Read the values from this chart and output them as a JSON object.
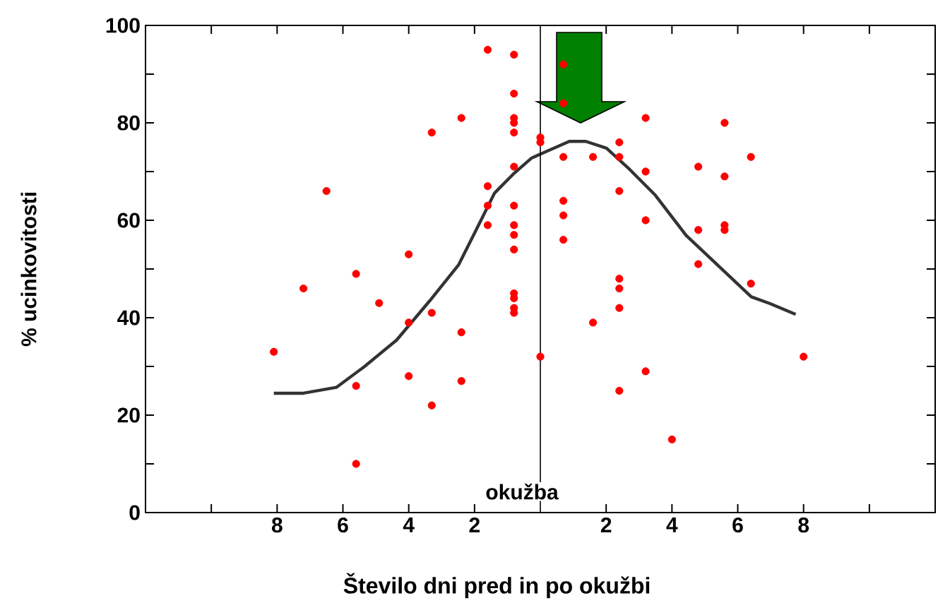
{
  "chart_data": {
    "type": "scatter",
    "xlabel": "Število dni pred in po okužbi",
    "ylabel": "% ucinkovitosti",
    "xlim": [
      -12,
      12
    ],
    "xticks": [
      {
        "value": -10,
        "label": null
      },
      {
        "value": -8,
        "label": "8"
      },
      {
        "value": -6,
        "label": "6"
      },
      {
        "value": -4,
        "label": "4"
      },
      {
        "value": -2,
        "label": "2"
      },
      {
        "value": 2,
        "label": "2"
      },
      {
        "value": 4,
        "label": "4"
      },
      {
        "value": 6,
        "label": "6"
      },
      {
        "value": 8,
        "label": "8"
      },
      {
        "value": 10,
        "label": null
      }
    ],
    "ylim": [
      0,
      100
    ],
    "yticks": [
      0,
      {
        "value": 10,
        "label": null
      },
      20,
      {
        "value": 30,
        "label": null
      },
      40,
      {
        "value": 50,
        "label": null
      },
      60,
      {
        "value": 70,
        "label": null
      },
      80,
      {
        "value": 90,
        "label": null
      },
      100
    ],
    "series": [
      {
        "color": "#ff0000",
        "marker": "circle",
        "x": [
          -1.6,
          -0.8,
          -0.8,
          -2.4,
          -0.8,
          -0.8,
          -0.8,
          -3.3,
          0,
          0,
          -0.8,
          -1.6,
          -1.6,
          -0.8,
          -1.6,
          -0.8,
          -0.8,
          -0.8,
          -6.5,
          -4,
          -5.6,
          -7.2,
          -4.9,
          -4,
          -3.3,
          -2.4,
          -8.1,
          -0.8,
          -0.8,
          -0.8,
          -0.8,
          0,
          -5.6,
          -4,
          -2.4,
          -3.3,
          -5.6,
          0.7,
          0.7,
          3.2,
          5.6,
          2.4,
          0.7,
          1.6,
          2.4,
          6.4,
          4.8,
          3.2,
          5.6,
          2.4,
          0.7,
          0.7,
          3.2,
          4.8,
          5.6,
          5.6,
          0.7,
          4.8,
          2.4,
          6.4,
          2.4,
          2.4,
          1.6,
          8,
          3.2,
          2.4,
          4
        ],
        "values": [
          95,
          94,
          86,
          81,
          81,
          80,
          78,
          78,
          77,
          76,
          71,
          67,
          63,
          63,
          59,
          59,
          57,
          54,
          66,
          53,
          49,
          46,
          43,
          39,
          41,
          37,
          33,
          45,
          44,
          42,
          41,
          32,
          26,
          28,
          27,
          22,
          10,
          92,
          84,
          81,
          80,
          76,
          73,
          73,
          73,
          73,
          71,
          70,
          69,
          66,
          64,
          61,
          60,
          58,
          59,
          58,
          56,
          51,
          48,
          47,
          46,
          42,
          39,
          32,
          29,
          25,
          15
        ]
      },
      {
        "type": "line",
        "color": "#333333",
        "marker": "none",
        "x": [
          -8.1,
          -7.2,
          -6.2,
          -5.36,
          -4.37,
          -3.37,
          -2.48,
          -1.96,
          -1.39,
          -0.82,
          -0.26,
          0.88,
          1.38,
          2.01,
          2.72,
          3.5,
          4.43,
          5.42,
          6.41,
          6.98,
          7.76
        ],
        "values": [
          24.5,
          24.5,
          25.7,
          29.9,
          35.4,
          43.4,
          50.9,
          57.9,
          65.6,
          69.5,
          72.8,
          76.2,
          76.2,
          74.8,
          70.4,
          65.1,
          56.9,
          50.6,
          44.3,
          42.9,
          40.7
        ]
      }
    ],
    "ref_lines": [
      {
        "axis": "x",
        "value": 0,
        "label": "okužba",
        "color": "#000000"
      }
    ],
    "grid": false
  }
}
